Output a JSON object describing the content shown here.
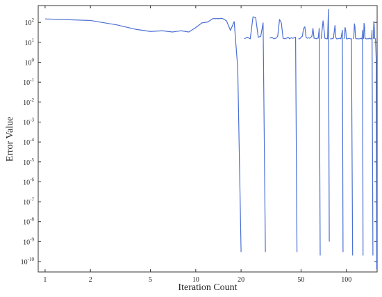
{
  "chart_data": {
    "type": "line",
    "xlabel": "Iteration Count",
    "ylabel": "Error Value",
    "x_scale": "log",
    "y_scale": "log",
    "xlim": [
      0.9,
      160
    ],
    "ylim": [
      3e-11,
      700
    ],
    "grid": false,
    "x_ticks": [
      1,
      2,
      5,
      10,
      20,
      50,
      100
    ],
    "x_tick_labels": [
      "1",
      "2",
      "5",
      "10",
      "20",
      "50",
      "100"
    ],
    "y_ticks": [
      {
        "value": 100,
        "base": "10",
        "exp": "2"
      },
      {
        "value": 10,
        "base": "10",
        "exp": "1"
      },
      {
        "value": 1,
        "base": "10",
        "exp": "0"
      },
      {
        "value": 0.1,
        "base": "10",
        "exp": "-1"
      },
      {
        "value": 0.01,
        "base": "10",
        "exp": "-2"
      },
      {
        "value": 0.001,
        "base": "10",
        "exp": "-3"
      },
      {
        "value": 0.0001,
        "base": "10",
        "exp": "-4"
      },
      {
        "value": 1e-05,
        "base": "10",
        "exp": "-5"
      },
      {
        "value": 1e-06,
        "base": "10",
        "exp": "-6"
      },
      {
        "value": 1e-07,
        "base": "10",
        "exp": "-7"
      },
      {
        "value": 1e-08,
        "base": "10",
        "exp": "-8"
      },
      {
        "value": 1e-09,
        "base": "10",
        "exp": "-9"
      },
      {
        "value": 1e-10,
        "base": "10",
        "exp": "-10"
      }
    ],
    "line_color": "#4a6fd4",
    "series": [
      {
        "segments": [
          [
            [
              1,
              150
            ],
            [
              2,
              125
            ],
            [
              3,
              75
            ],
            [
              4,
              45
            ],
            [
              5,
              35
            ],
            [
              6,
              38
            ],
            [
              7,
              33
            ],
            [
              8,
              38
            ],
            [
              9,
              33
            ],
            [
              10,
              55
            ],
            [
              11,
              95
            ],
            [
              12,
              105
            ],
            [
              13,
              155
            ],
            [
              14,
              155
            ],
            [
              15,
              160
            ],
            [
              16,
              120
            ],
            [
              17,
              40
            ],
            [
              18,
              110
            ],
            [
              19,
              0.5
            ],
            [
              20,
              3e-10
            ]
          ],
          [
            [
              21,
              15
            ],
            [
              22,
              18
            ],
            [
              23,
              15
            ],
            [
              24,
              190
            ],
            [
              25,
              170
            ],
            [
              26,
              18
            ],
            [
              27,
              20
            ],
            [
              28,
              95
            ],
            [
              29,
              3e-10
            ]
          ],
          [
            [
              31,
              16
            ],
            [
              32,
              18
            ],
            [
              33,
              15
            ],
            [
              34,
              16
            ],
            [
              35,
              20
            ],
            [
              36,
              140
            ],
            [
              37,
              95
            ],
            [
              38,
              16
            ],
            [
              39,
              15
            ],
            [
              40,
              16
            ],
            [
              41,
              18
            ],
            [
              42,
              15
            ],
            [
              43,
              17
            ],
            [
              44,
              16
            ],
            [
              45,
              17
            ],
            [
              46,
              18
            ],
            [
              47,
              3e-10
            ]
          ],
          [
            [
              48,
              15
            ],
            [
              49,
              15
            ],
            [
              50,
              18
            ],
            [
              51,
              20
            ],
            [
              52,
              50
            ],
            [
              53,
              60
            ],
            [
              54,
              18
            ],
            [
              55,
              16
            ],
            [
              56,
              17
            ],
            [
              57,
              16
            ],
            [
              58,
              18
            ],
            [
              59,
              20
            ],
            [
              60,
              50
            ],
            [
              61,
              16
            ],
            [
              62,
              16
            ],
            [
              63,
              15
            ],
            [
              64,
              16
            ],
            [
              65,
              16
            ],
            [
              66,
              50
            ],
            [
              67,
              2e-10
            ]
          ],
          [
            [
              68,
              15
            ],
            [
              70,
              120
            ],
            [
              72,
              16
            ],
            [
              74,
              15
            ],
            [
              75,
              15
            ],
            [
              76,
              450
            ],
            [
              77,
              1e-09
            ]
          ],
          [
            [
              78,
              15
            ],
            [
              80,
              15
            ],
            [
              82,
              16
            ],
            [
              84,
              70
            ],
            [
              85,
              18
            ],
            [
              86,
              15
            ],
            [
              88,
              15
            ],
            [
              90,
              16
            ],
            [
              92,
              15
            ],
            [
              94,
              40
            ],
            [
              95,
              3e-10
            ]
          ],
          [
            [
              96,
              15
            ],
            [
              97,
              17
            ],
            [
              98,
              55
            ],
            [
              99,
              40
            ],
            [
              100,
              15
            ],
            [
              102,
              15
            ],
            [
              104,
              16
            ],
            [
              106,
              15
            ],
            [
              108,
              15
            ],
            [
              110,
              2e-10
            ]
          ],
          [
            [
              111,
              15
            ],
            [
              112,
              17
            ],
            [
              113,
              85
            ],
            [
              114,
              60
            ],
            [
              115,
              16
            ],
            [
              117,
              15
            ],
            [
              119,
              15
            ],
            [
              121,
              15
            ],
            [
              123,
              15
            ],
            [
              125,
              16
            ],
            [
              126,
              15
            ],
            [
              127,
              15
            ],
            [
              128,
              40
            ],
            [
              129,
              2e-10
            ]
          ],
          [
            [
              130,
              15
            ],
            [
              131,
              90
            ],
            [
              132,
              60
            ],
            [
              133,
              16
            ],
            [
              135,
              15
            ],
            [
              137,
              15
            ],
            [
              140,
              15
            ],
            [
              142,
              16
            ],
            [
              145,
              15
            ],
            [
              147,
              15
            ],
            [
              148,
              40
            ],
            [
              150,
              2e-10
            ]
          ],
          [
            [
              151,
              15
            ],
            [
              152,
              110
            ],
            [
              153,
              70
            ],
            [
              154,
              16
            ],
            [
              156,
              15
            ],
            [
              158,
              1
            ],
            [
              159,
              4e-11
            ]
          ]
        ]
      }
    ]
  }
}
